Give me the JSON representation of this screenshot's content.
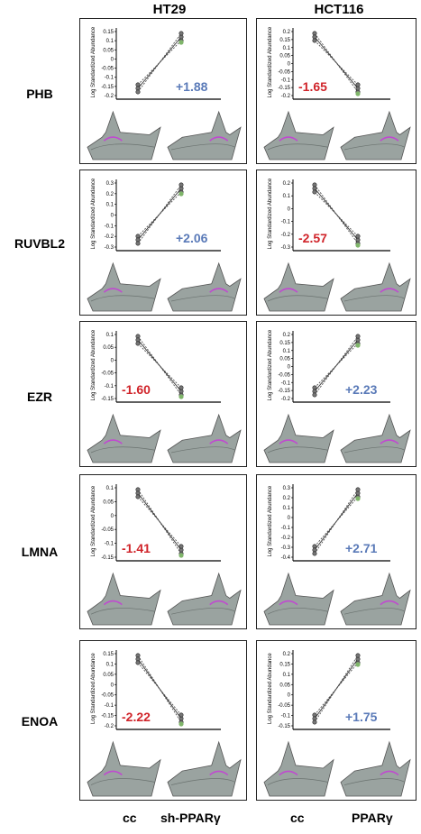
{
  "columns": [
    "HT29",
    "HCT116"
  ],
  "rows": [
    {
      "gene": "PHB",
      "left": {
        "fold": "+1.88",
        "color": "#5a7ab8",
        "dir": "up",
        "ticks": [
          "0.15",
          "0.1",
          "0.05",
          "0",
          "-0.05",
          "-0.1",
          "-0.15",
          "-0.2"
        ]
      },
      "right": {
        "fold": "-1.65",
        "color": "#d0242a",
        "dir": "down",
        "ticks": [
          "0.2",
          "0.15",
          "0.1",
          "0.05",
          "0",
          "-0.05",
          "-0.1",
          "-0.15",
          "-0.2"
        ]
      }
    },
    {
      "gene": "RUVBL2",
      "left": {
        "fold": "+2.06",
        "color": "#5a7ab8",
        "dir": "up",
        "ticks": [
          "0.3",
          "0.2",
          "0.1",
          "0",
          "-0.1",
          "-0.2",
          "-0.3"
        ]
      },
      "right": {
        "fold": "-2.57",
        "color": "#d0242a",
        "dir": "down",
        "ticks": [
          "0.2",
          "0.1",
          "0",
          "-0.1",
          "-0.2",
          "-0.3"
        ]
      }
    },
    {
      "gene": "EZR",
      "left": {
        "fold": "-1.60",
        "color": "#d0242a",
        "dir": "down",
        "ticks": [
          "0.1",
          "0.05",
          "0",
          "-0.05",
          "-0.1",
          "-0.15"
        ]
      },
      "right": {
        "fold": "+2.23",
        "color": "#5a7ab8",
        "dir": "up",
        "ticks": [
          "0.2",
          "0.15",
          "0.1",
          "0.05",
          "0",
          "-0.05",
          "-0.1",
          "-0.15",
          "-0.2"
        ]
      }
    },
    {
      "gene": "LMNA",
      "left": {
        "fold": "-1.41",
        "color": "#d0242a",
        "dir": "down",
        "ticks": [
          "0.1",
          "0.05",
          "0",
          "-0.05",
          "-0.1",
          "-0.15"
        ]
      },
      "right": {
        "fold": "+2.71",
        "color": "#5a7ab8",
        "dir": "up",
        "ticks": [
          "0.3",
          "0.2",
          "0.1",
          "0",
          "-0.1",
          "-0.2",
          "-0.3",
          "-0.4"
        ]
      }
    },
    {
      "gene": "ENOA",
      "left": {
        "fold": "-2.22",
        "color": "#d0242a",
        "dir": "down",
        "ticks": [
          "0.15",
          "0.1",
          "0.05",
          "0",
          "-0.05",
          "-0.1",
          "-0.15",
          "-0.2"
        ]
      },
      "right": {
        "fold": "+1.75",
        "color": "#5a7ab8",
        "dir": "up",
        "ticks": [
          "0.2",
          "0.15",
          "0.1",
          "0.05",
          "0",
          "-0.05",
          "-0.1",
          "-0.15"
        ]
      }
    }
  ],
  "ylabel": "Log Standardized Abundance",
  "conditions": {
    "left_a": "cc",
    "left_b": "sh-PPARγ",
    "right_a": "cc",
    "right_b": "PPARγ"
  }
}
